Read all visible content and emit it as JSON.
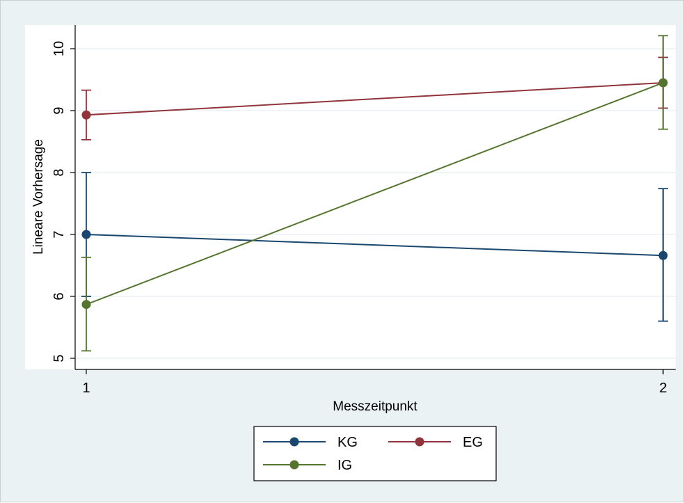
{
  "chart_data": {
    "type": "line",
    "title": "",
    "xlabel": "Messzeitpunkt",
    "ylabel": "Lineare Vorhersage",
    "x": [
      1,
      2
    ],
    "xticks": [
      "1",
      "2"
    ],
    "xlim": [
      1,
      2
    ],
    "ylim": [
      5,
      10
    ],
    "yticks": [
      "5",
      "6",
      "7",
      "8",
      "9",
      "10"
    ],
    "grid": "horizontal",
    "legend_position": "bottom",
    "series": [
      {
        "name": "KG",
        "color": "#1a476f",
        "values": [
          7.0,
          6.66
        ],
        "ci_low": [
          6.0,
          5.6
        ],
        "ci_high": [
          8.0,
          7.74
        ]
      },
      {
        "name": "EG",
        "color": "#90353b",
        "values": [
          8.93,
          9.45
        ],
        "ci_low": [
          8.53,
          9.04
        ],
        "ci_high": [
          9.33,
          9.86
        ]
      },
      {
        "name": "IG",
        "color": "#55752f",
        "values": [
          5.87,
          9.45
        ],
        "ci_low": [
          5.12,
          8.7
        ],
        "ci_high": [
          6.63,
          10.21
        ]
      }
    ]
  }
}
